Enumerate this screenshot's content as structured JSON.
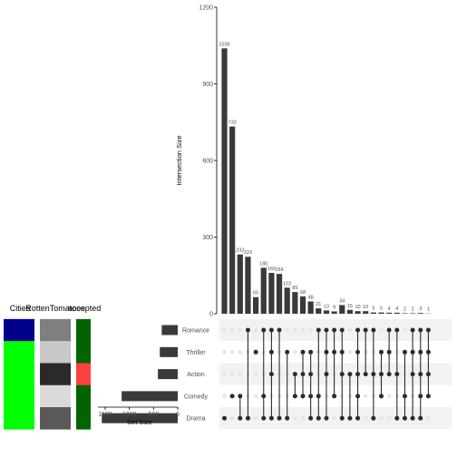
{
  "chart_data": {
    "type": "bar",
    "title": "",
    "ylabel": "Intersection Size",
    "ylim": [
      0,
      1200
    ],
    "yticks": [
      0,
      300,
      600,
      900,
      1200
    ],
    "grid": false,
    "sets": [
      "Romance",
      "Thriller",
      "Action",
      "Comedy",
      "Drama"
    ],
    "set_sizes": [
      330,
      370,
      410,
      1160,
      1570
    ],
    "set_size_label": "Set Size",
    "set_size_ticks": [
      1500,
      1000,
      500,
      0
    ],
    "values": [
      1039,
      733,
      232,
      223,
      65,
      180,
      160,
      156,
      102,
      85,
      68,
      48,
      21,
      13,
      9,
      34,
      15,
      10,
      10,
      5,
      5,
      4,
      4,
      2,
      2,
      3,
      1
    ],
    "memberships": [
      [
        "Drama"
      ],
      [
        "Comedy"
      ],
      [
        "Comedy",
        "Drama"
      ],
      [
        "Romance",
        "Drama"
      ],
      [
        "Thriller"
      ],
      [
        "Romance",
        "Comedy",
        "Drama"
      ],
      [
        "Romance",
        "Thriller",
        "Action",
        "Drama"
      ],
      [
        "Romance",
        "Drama"
      ],
      [
        "Thriller",
        "Drama"
      ],
      [
        "Action",
        "Comedy"
      ],
      [
        "Thriller",
        "Action",
        "Comedy"
      ],
      [
        "Thriller",
        "Action",
        "Comedy",
        "Drama"
      ],
      [
        "Romance",
        "Comedy",
        "Drama"
      ],
      [
        "Romance",
        "Thriller",
        "Action",
        "Drama"
      ],
      [
        "Romance",
        "Thriller",
        "Comedy"
      ],
      [
        "Romance",
        "Thriller",
        "Action",
        "Drama"
      ],
      [
        "Action",
        "Drama"
      ],
      [
        "Romance",
        "Thriller",
        "Action",
        "Comedy",
        "Drama"
      ],
      [
        "Romance",
        "Action"
      ],
      [
        "Romance",
        "Action",
        "Drama"
      ],
      [
        "Thriller",
        "Action",
        "Comedy"
      ],
      [
        "Romance",
        "Thriller",
        "Action"
      ],
      [
        "Romance",
        "Action",
        "Drama"
      ],
      [
        "Thriller",
        "Comedy",
        "Drama"
      ],
      [
        "Romance",
        "Thriller",
        "Action",
        "Drama"
      ],
      [
        "Romance",
        "Thriller",
        "Action",
        "Comedy",
        "Drama"
      ],
      [
        "Romance",
        "Thriller",
        "Action",
        "Comedy"
      ]
    ],
    "metadata_columns": [
      {
        "label": "Cities",
        "colors": [
          "#00008B",
          "#00FF00",
          "#00FF00",
          "#00FF00",
          "#00FF00"
        ]
      },
      {
        "label": "RottenTomatoes",
        "colors": [
          "#7F7F7F",
          "#C8C8C8",
          "#2A2A2A",
          "#DADADA",
          "#595959"
        ]
      },
      {
        "label": "accepted",
        "colors": [
          "#006400",
          "#006400",
          "#FF4040",
          "#006400",
          "#006400"
        ]
      }
    ],
    "colors": {
      "bar": "#3A3A3A",
      "dot_active": "#2B2B2B",
      "dot_inactive": "#E6E6E6",
      "stripe": "#F2F2F2",
      "axis": "#000000",
      "tick_text": "#4D4D4D"
    }
  }
}
